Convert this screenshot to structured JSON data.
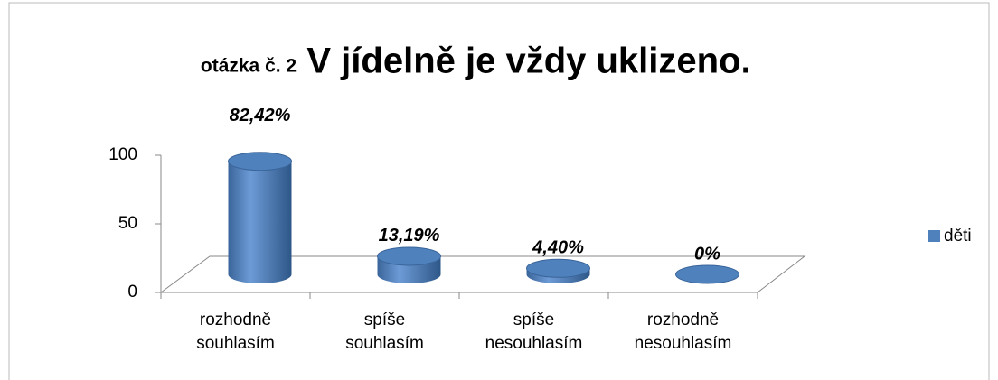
{
  "chart_data": {
    "type": "bar3d",
    "title": "V jídelně je vždy uklizeno.",
    "subtitle": "otázka č. 2",
    "categories": [
      "rozhodně souhlasím",
      "spíše souhlasím",
      "spíše nesouhlasím",
      "rozhodně nesouhlasím"
    ],
    "series": [
      {
        "name": "děti",
        "color": "#4f81bd",
        "values": [
          82.42,
          13.19,
          4.4,
          0
        ],
        "value_labels": [
          "82,42%",
          "13,19%",
          "4,40%",
          "0%"
        ]
      }
    ],
    "ylim": [
      0,
      100
    ],
    "yticks": [
      0,
      50,
      100
    ],
    "legend": "right"
  }
}
